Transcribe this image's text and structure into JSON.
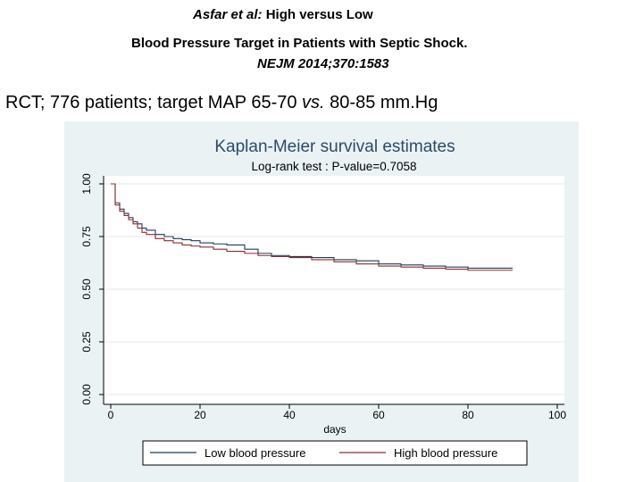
{
  "header": {
    "authors": "Asfar et al:",
    "title_part1": "High versus Low",
    "title_part2": "Blood Pressure Target in Patients with Septic Shock.",
    "journal": "NEJM 2014;370:1583",
    "headline_prefix": "RCT; 776 patients; target MAP 65-70",
    "headline_vs": "vs.",
    "headline_suffix": "80-85 mm.Hg"
  },
  "colors": {
    "low_bp": "#1f3b5c",
    "high_bp": "#8c2d2d",
    "panel_bg": "#eaf2f3",
    "title_text": "#2d4a6a"
  },
  "chart_data": {
    "type": "line",
    "title": "Kaplan-Meier survival estimates",
    "subtitle": "Log-rank test : P-value=0.7058",
    "xlabel": "days",
    "ylabel": "",
    "xlim": [
      0,
      100
    ],
    "ylim": [
      0,
      1
    ],
    "xticks": [
      "0",
      "20",
      "40",
      "60",
      "80",
      "100"
    ],
    "yticks": [
      "0.00",
      "0.25",
      "0.50",
      "0.75",
      "1.00"
    ],
    "grid": true,
    "legend_position": "bottom",
    "series": [
      {
        "name": "Low blood pressure",
        "x": [
          0,
          1,
          2,
          3,
          4,
          5,
          6,
          7,
          8,
          10,
          12,
          14,
          16,
          18,
          20,
          23,
          26,
          30,
          33,
          36,
          40,
          45,
          50,
          55,
          60,
          65,
          70,
          75,
          80,
          85,
          90
        ],
        "y": [
          1.0,
          0.91,
          0.88,
          0.86,
          0.84,
          0.82,
          0.81,
          0.79,
          0.78,
          0.76,
          0.75,
          0.74,
          0.735,
          0.73,
          0.72,
          0.715,
          0.71,
          0.69,
          0.67,
          0.66,
          0.655,
          0.65,
          0.64,
          0.635,
          0.62,
          0.615,
          0.61,
          0.605,
          0.6,
          0.6,
          0.6
        ]
      },
      {
        "name": "High blood pressure",
        "x": [
          0,
          1,
          2,
          3,
          4,
          5,
          6,
          7,
          8,
          10,
          12,
          14,
          16,
          18,
          20,
          23,
          26,
          30,
          33,
          36,
          40,
          45,
          50,
          55,
          60,
          65,
          70,
          75,
          80,
          85,
          90
        ],
        "y": [
          1.0,
          0.9,
          0.87,
          0.85,
          0.83,
          0.81,
          0.79,
          0.77,
          0.76,
          0.74,
          0.73,
          0.72,
          0.71,
          0.705,
          0.7,
          0.69,
          0.68,
          0.67,
          0.66,
          0.655,
          0.65,
          0.64,
          0.63,
          0.62,
          0.61,
          0.605,
          0.6,
          0.595,
          0.59,
          0.59,
          0.59
        ]
      }
    ]
  }
}
